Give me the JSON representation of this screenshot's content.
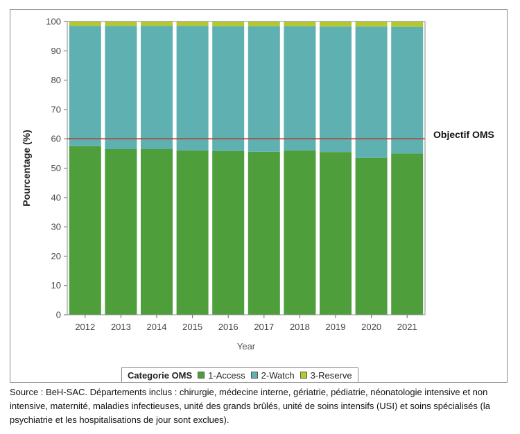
{
  "chart_data": {
    "type": "bar",
    "stacked": true,
    "categories": [
      "2012",
      "2013",
      "2014",
      "2015",
      "2016",
      "2017",
      "2018",
      "2019",
      "2020",
      "2021"
    ],
    "series": [
      {
        "name": "1-Access",
        "color": "#4e9e3c",
        "values": [
          57.5,
          56.5,
          56.5,
          56.0,
          55.8,
          55.6,
          56.0,
          55.5,
          53.5,
          55.0
        ]
      },
      {
        "name": "2-Watch",
        "color": "#5fb1b1",
        "values": [
          41.0,
          42.0,
          42.0,
          42.5,
          42.6,
          42.8,
          42.4,
          42.8,
          44.8,
          43.2
        ]
      },
      {
        "name": "3-Reserve",
        "color": "#b5c82e",
        "values": [
          1.5,
          1.5,
          1.5,
          1.5,
          1.6,
          1.6,
          1.6,
          1.7,
          1.7,
          1.8
        ]
      }
    ],
    "xlabel": "Year",
    "ylabel": "Pourcentage (%)",
    "ylim": [
      0,
      100
    ],
    "yticks": [
      0,
      10,
      20,
      30,
      40,
      50,
      60,
      70,
      80,
      90,
      100
    ],
    "reference_line": {
      "value": 60,
      "label": "Objectif OMS",
      "color": "#b5403a"
    },
    "legend": {
      "title": "Categorie OMS",
      "placement": "bottom"
    },
    "grid": false
  },
  "source_note": "Source : BeH-SAC. Départements inclus : chirurgie, médecine interne, gériatrie, pédiatrie, néonatologie intensive et non intensive, maternité, maladies infectieuses, unité des grands brûlés, unité de soins intensifs (USI) et soins spécialisés (la psychiatrie et les hospitalisations de jour sont exclues)."
}
